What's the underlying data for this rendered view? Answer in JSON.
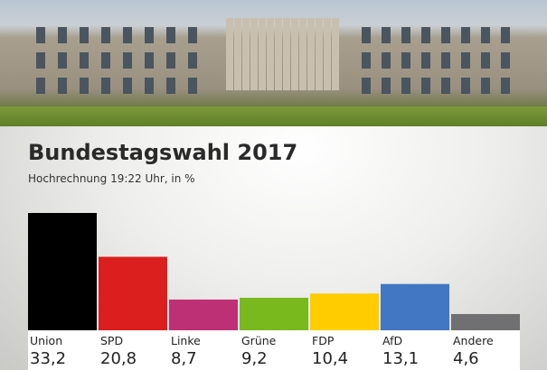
{
  "header_image": "reichstag-photo",
  "chart_data": {
    "type": "bar",
    "title": "Bundestagswahl 2017",
    "subtitle": "Hochrechnung 19:22 Uhr, in %",
    "categories": [
      "Union",
      "SPD",
      "Linke",
      "Grüne",
      "FDP",
      "AfD",
      "Andere"
    ],
    "values": [
      33.2,
      20.8,
      8.7,
      9.2,
      10.4,
      13.1,
      4.6
    ],
    "value_labels": [
      "33,2",
      "20,8",
      "8,7",
      "9,2",
      "10,4",
      "13,1",
      "4,6"
    ],
    "colors": [
      "#000000",
      "#da1f1e",
      "#be3075",
      "#7ab91e",
      "#ffcc00",
      "#4277c3",
      "#707073"
    ],
    "ylim": [
      0,
      33.2
    ],
    "grid": false,
    "legend": "none"
  }
}
